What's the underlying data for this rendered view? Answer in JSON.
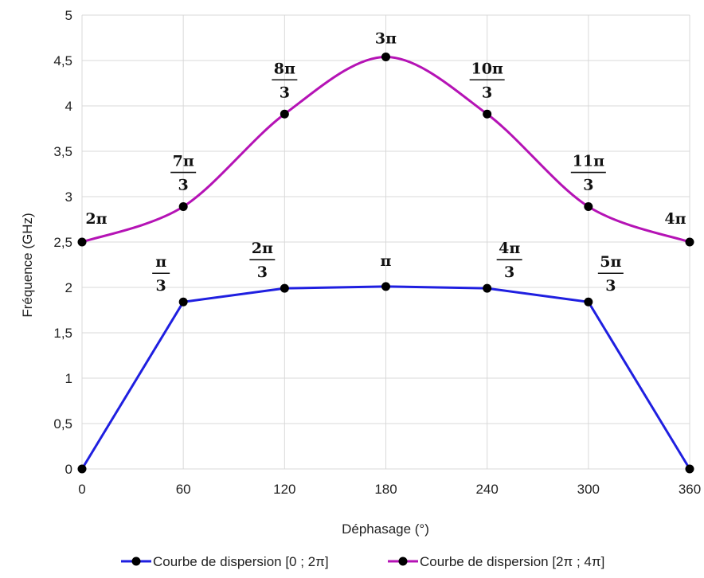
{
  "chart_data": {
    "type": "line",
    "title": "",
    "xlabel": "Déphasage (°)",
    "ylabel": "Fréquence (GHz)",
    "xlim": [
      0,
      360
    ],
    "ylim": [
      0,
      5
    ],
    "xticks": [
      {
        "value": 0,
        "label": "0"
      },
      {
        "value": 60,
        "label": "60"
      },
      {
        "value": 120,
        "label": "120"
      },
      {
        "value": 180,
        "label": "180"
      },
      {
        "value": 240,
        "label": "240"
      },
      {
        "value": 300,
        "label": "300"
      },
      {
        "value": 360,
        "label": "360"
      }
    ],
    "yticks": [
      {
        "value": 0,
        "label": "0"
      },
      {
        "value": 0.5,
        "label": "0,5"
      },
      {
        "value": 1,
        "label": "1"
      },
      {
        "value": 1.5,
        "label": "1,5"
      },
      {
        "value": 2,
        "label": "2"
      },
      {
        "value": 2.5,
        "label": "2,5"
      },
      {
        "value": 3,
        "label": "3"
      },
      {
        "value": 3.5,
        "label": "3,5"
      },
      {
        "value": 4,
        "label": "4"
      },
      {
        "value": 4.5,
        "label": "4,5"
      },
      {
        "value": 5,
        "label": "5"
      }
    ],
    "grid": true,
    "legend_position": "bottom",
    "series": [
      {
        "name": "Courbe de dispersion [0 ; 2π]",
        "color": "#1f1fe0",
        "smooth": false,
        "x": [
          0,
          60,
          120,
          180,
          240,
          300,
          360
        ],
        "y": [
          0,
          1.84,
          1.99,
          2.01,
          1.99,
          1.84,
          0
        ],
        "labels": [
          {
            "num": "",
            "den": ""
          },
          {
            "num": "π",
            "den": "3"
          },
          {
            "num": "2π",
            "den": "3"
          },
          {
            "num": "π",
            "den": ""
          },
          {
            "num": "4π",
            "den": "3"
          },
          {
            "num": "5π",
            "den": "3"
          },
          {
            "num": "",
            "den": ""
          }
        ]
      },
      {
        "name": "Courbe de dispersion [2π ; 4π]",
        "color": "#b513b5",
        "smooth": true,
        "x": [
          0,
          60,
          120,
          180,
          240,
          300,
          360
        ],
        "y": [
          2.5,
          2.89,
          3.91,
          4.54,
          3.91,
          2.89,
          2.5
        ],
        "labels": [
          {
            "num": "2π",
            "den": ""
          },
          {
            "num": "7π",
            "den": "3"
          },
          {
            "num": "8π",
            "den": "3"
          },
          {
            "num": "3π",
            "den": ""
          },
          {
            "num": "10π",
            "den": "3"
          },
          {
            "num": "11π",
            "den": "3"
          },
          {
            "num": "4π",
            "den": ""
          }
        ]
      }
    ]
  }
}
